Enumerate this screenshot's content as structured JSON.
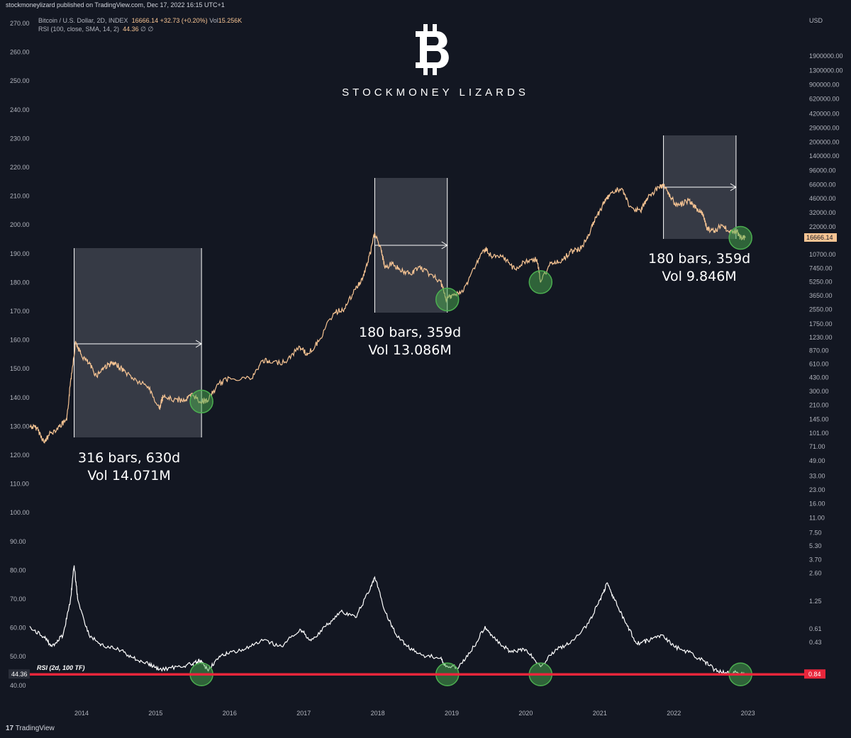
{
  "header": {
    "published": "stockmoneylizard published on TradingView.com, Dec 17, 2022 16:15 UTC+1",
    "symbol": "Bitcoin / U.S. Dollar, 2D, INDEX",
    "price": "16666.14",
    "change": "+32.73 (+0.20%)",
    "vol_label": "Vol",
    "vol": "15.256K",
    "rsi_label": "RSI (100, close, SMA, 14, 2)",
    "rsi_value": "44.36",
    "rsi_extra": "∅ ∅"
  },
  "logo": {
    "symbol": "bitcoin-icon",
    "text": "STOCKMONEY LIZARDS"
  },
  "footer": {
    "brand": "TradingView"
  },
  "colors": {
    "background": "#131722",
    "price": "#f7c493",
    "rsi": "#ffffff",
    "level": "#e8263b",
    "bottom_marker": "#4caf50"
  },
  "chart_data": [
    {
      "type": "line",
      "name": "price",
      "yscale": "log",
      "ylabel": "USD",
      "right_ticks": [
        "1900000.00",
        "1300000.00",
        "900000.00",
        "620000.00",
        "420000.00",
        "290000.00",
        "200000.00",
        "140000.00",
        "96000.00",
        "66000.00",
        "46000.00",
        "32000.00",
        "22000.00",
        "10700.00",
        "7450.00",
        "5250.00",
        "3650.00",
        "2550.00",
        "1750.00",
        "1230.00",
        "870.00",
        "610.00",
        "430.00",
        "300.00",
        "210.00",
        "145.00",
        "101.00",
        "71.00",
        "49.00",
        "33.00",
        "23.00",
        "16.00",
        "11.00",
        "7.50",
        "5.30",
        "3.70",
        "2.60",
        "1.25",
        "0.61",
        "0.43"
      ],
      "last_price": "16666.14",
      "points": [
        [
          2013.3,
          120
        ],
        [
          2013.4,
          115
        ],
        [
          2013.5,
          78
        ],
        [
          2013.55,
          95
        ],
        [
          2013.7,
          120
        ],
        [
          2013.8,
          140
        ],
        [
          2013.85,
          380
        ],
        [
          2013.92,
          1100
        ],
        [
          2014.0,
          760
        ],
        [
          2014.1,
          620
        ],
        [
          2014.2,
          450
        ],
        [
          2014.3,
          560
        ],
        [
          2014.4,
          620
        ],
        [
          2014.5,
          580
        ],
        [
          2014.6,
          490
        ],
        [
          2014.75,
          390
        ],
        [
          2014.9,
          340
        ],
        [
          2015.05,
          190
        ],
        [
          2015.1,
          260
        ],
        [
          2015.25,
          240
        ],
        [
          2015.4,
          240
        ],
        [
          2015.5,
          275
        ],
        [
          2015.6,
          230
        ],
        [
          2015.7,
          235
        ],
        [
          2015.85,
          360
        ],
        [
          2016.0,
          430
        ],
        [
          2016.3,
          420
        ],
        [
          2016.45,
          680
        ],
        [
          2016.55,
          630
        ],
        [
          2016.75,
          650
        ],
        [
          2016.95,
          960
        ],
        [
          2017.05,
          780
        ],
        [
          2017.2,
          1100
        ],
        [
          2017.4,
          2300
        ],
        [
          2017.55,
          2600
        ],
        [
          2017.7,
          4300
        ],
        [
          2017.8,
          5800
        ],
        [
          2017.9,
          11000
        ],
        [
          2017.96,
          19000
        ],
        [
          2018.05,
          11500
        ],
        [
          2018.1,
          7500
        ],
        [
          2018.2,
          8500
        ],
        [
          2018.3,
          7200
        ],
        [
          2018.45,
          6300
        ],
        [
          2018.55,
          7800
        ],
        [
          2018.7,
          6400
        ],
        [
          2018.85,
          5300
        ],
        [
          2018.92,
          3300
        ],
        [
          2019.0,
          3700
        ],
        [
          2019.15,
          4000
        ],
        [
          2019.3,
          7500
        ],
        [
          2019.45,
          12500
        ],
        [
          2019.55,
          10000
        ],
        [
          2019.7,
          9800
        ],
        [
          2019.85,
          7300
        ],
        [
          2020.0,
          8900
        ],
        [
          2020.15,
          9500
        ],
        [
          2020.2,
          5200
        ],
        [
          2020.35,
          8800
        ],
        [
          2020.5,
          9200
        ],
        [
          2020.6,
          11500
        ],
        [
          2020.75,
          12500
        ],
        [
          2020.85,
          18000
        ],
        [
          2020.95,
          28000
        ],
        [
          2021.05,
          40000
        ],
        [
          2021.15,
          54000
        ],
        [
          2021.3,
          60000
        ],
        [
          2021.4,
          37000
        ],
        [
          2021.55,
          33000
        ],
        [
          2021.65,
          47000
        ],
        [
          2021.8,
          62000
        ],
        [
          2021.87,
          66000
        ],
        [
          2021.95,
          48000
        ],
        [
          2022.05,
          38000
        ],
        [
          2022.2,
          44000
        ],
        [
          2022.3,
          36000
        ],
        [
          2022.4,
          30000
        ],
        [
          2022.45,
          21000
        ],
        [
          2022.55,
          20000
        ],
        [
          2022.65,
          23000
        ],
        [
          2022.75,
          19500
        ],
        [
          2022.85,
          19800
        ],
        [
          2022.9,
          16500
        ],
        [
          2022.97,
          16666
        ]
      ]
    },
    {
      "type": "line",
      "name": "rsi",
      "label": "RSI (2d, 100 TF)",
      "level": "44.36",
      "level_right": "0.84",
      "ticks": [
        "270.00",
        "260.00",
        "250.00",
        "240.00",
        "230.00",
        "220.00",
        "210.00",
        "200.00",
        "190.00",
        "180.00",
        "170.00",
        "160.00",
        "150.00",
        "140.00",
        "130.00",
        "120.00",
        "110.00",
        "100.00",
        "90.00",
        "80.00",
        "70.00",
        "60.00",
        "50.00",
        "40.00"
      ],
      "points": [
        [
          2013.3,
          61
        ],
        [
          2013.5,
          57
        ],
        [
          2013.6,
          54
        ],
        [
          2013.75,
          58
        ],
        [
          2013.85,
          70
        ],
        [
          2013.9,
          82
        ],
        [
          2013.95,
          70
        ],
        [
          2014.1,
          58
        ],
        [
          2014.3,
          54
        ],
        [
          2014.5,
          53
        ],
        [
          2014.7,
          50
        ],
        [
          2014.9,
          48
        ],
        [
          2015.05,
          46
        ],
        [
          2015.3,
          47
        ],
        [
          2015.5,
          48
        ],
        [
          2015.6,
          49
        ],
        [
          2015.7,
          46
        ],
        [
          2015.85,
          50
        ],
        [
          2016.0,
          52
        ],
        [
          2016.2,
          53
        ],
        [
          2016.45,
          56
        ],
        [
          2016.7,
          54
        ],
        [
          2016.95,
          60
        ],
        [
          2017.1,
          56
        ],
        [
          2017.3,
          61
        ],
        [
          2017.5,
          66
        ],
        [
          2017.7,
          64
        ],
        [
          2017.9,
          74
        ],
        [
          2017.96,
          78
        ],
        [
          2018.1,
          66
        ],
        [
          2018.25,
          58
        ],
        [
          2018.4,
          54
        ],
        [
          2018.6,
          51
        ],
        [
          2018.85,
          50
        ],
        [
          2018.92,
          47
        ],
        [
          2019.1,
          47
        ],
        [
          2019.3,
          54
        ],
        [
          2019.45,
          61
        ],
        [
          2019.6,
          56
        ],
        [
          2019.8,
          52
        ],
        [
          2020.0,
          53
        ],
        [
          2020.2,
          47
        ],
        [
          2020.4,
          53
        ],
        [
          2020.6,
          55
        ],
        [
          2020.85,
          62
        ],
        [
          2021.0,
          70
        ],
        [
          2021.1,
          76
        ],
        [
          2021.2,
          70
        ],
        [
          2021.35,
          62
        ],
        [
          2021.5,
          55
        ],
        [
          2021.65,
          56
        ],
        [
          2021.85,
          58
        ],
        [
          2022.0,
          54
        ],
        [
          2022.2,
          52
        ],
        [
          2022.4,
          49
        ],
        [
          2022.55,
          46
        ],
        [
          2022.7,
          45
        ],
        [
          2022.85,
          45
        ],
        [
          2022.97,
          44.4
        ]
      ]
    }
  ],
  "x_ticks": [
    "2014",
    "2015",
    "2016",
    "2017",
    "2018",
    "2019",
    "2020",
    "2021",
    "2022",
    "2023"
  ],
  "annotations": [
    {
      "line1": "316 bars, 630d",
      "line2": "Vol 14.071M",
      "x0": 2013.9,
      "x1": 2015.62
    },
    {
      "line1": "180 bars, 359d",
      "line2": "Vol 13.086M",
      "x0": 2017.96,
      "x1": 2018.94
    },
    {
      "line1": "180 bars, 359d",
      "line2": "Vol 9.846M",
      "x0": 2021.86,
      "x1": 2022.84
    }
  ]
}
